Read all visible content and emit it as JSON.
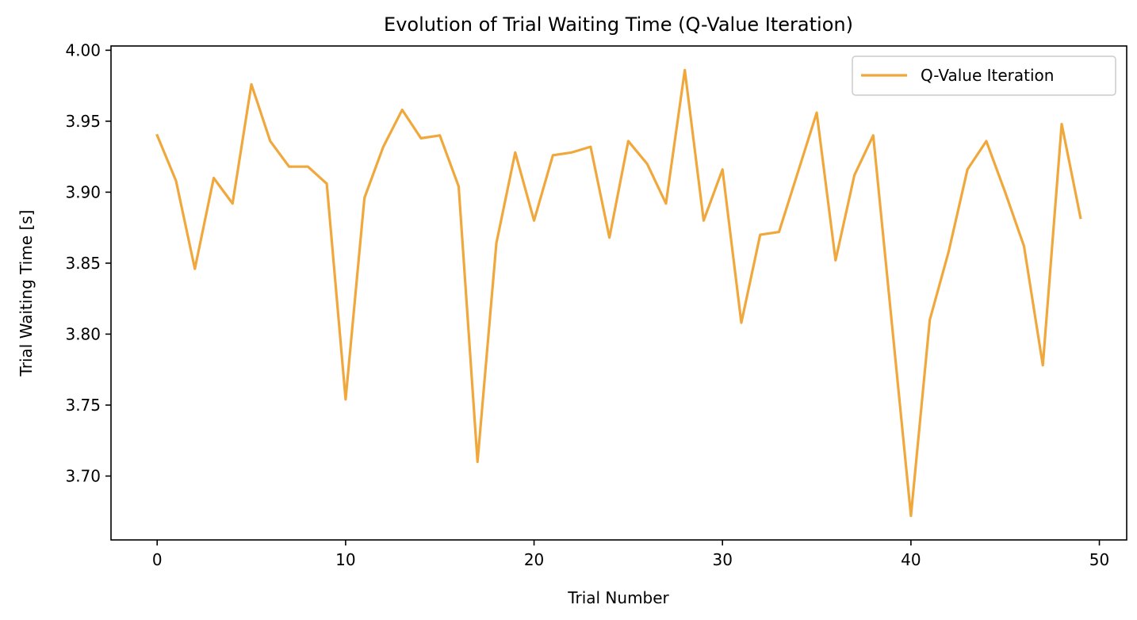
{
  "chart_data": {
    "type": "line",
    "title": "Evolution of Trial Waiting Time (Q-Value Iteration)",
    "xlabel": "Trial Number",
    "ylabel": "Trial Waiting Time [s]",
    "xlim": [
      -2.45,
      51.45
    ],
    "ylim": [
      3.655,
      4.003
    ],
    "xticks": [
      0,
      10,
      20,
      30,
      40,
      50
    ],
    "xtick_labels": [
      "0",
      "10",
      "20",
      "30",
      "40",
      "50"
    ],
    "yticks": [
      3.7,
      3.75,
      3.8,
      3.85,
      3.9,
      3.95,
      4.0
    ],
    "ytick_labels": [
      "3.70",
      "3.75",
      "3.80",
      "3.85",
      "3.90",
      "3.95",
      "4.00"
    ],
    "grid": false,
    "legend_position": "top-right",
    "series": [
      {
        "name": "Q-Value Iteration",
        "color": "#f0a83c",
        "x": [
          0,
          1,
          2,
          3,
          4,
          5,
          6,
          7,
          8,
          9,
          10,
          11,
          12,
          13,
          14,
          15,
          16,
          17,
          18,
          19,
          20,
          21,
          22,
          23,
          24,
          25,
          26,
          27,
          28,
          29,
          30,
          31,
          32,
          33,
          34,
          35,
          36,
          37,
          38,
          39,
          40,
          41,
          42,
          43,
          44,
          45,
          46,
          47,
          48,
          49
        ],
        "y": [
          3.94,
          3.908,
          3.846,
          3.91,
          3.892,
          3.976,
          3.936,
          3.918,
          3.918,
          3.906,
          3.754,
          3.896,
          3.932,
          3.958,
          3.938,
          3.94,
          3.904,
          3.71,
          3.864,
          3.928,
          3.88,
          3.926,
          3.928,
          3.932,
          3.868,
          3.936,
          3.92,
          3.892,
          3.986,
          3.88,
          3.916,
          3.808,
          3.87,
          3.872,
          3.914,
          3.956,
          3.852,
          3.912,
          3.94,
          3.806,
          3.672,
          3.81,
          3.858,
          3.916,
          3.936,
          3.9,
          3.862,
          3.778,
          3.948,
          3.882
        ]
      }
    ]
  }
}
